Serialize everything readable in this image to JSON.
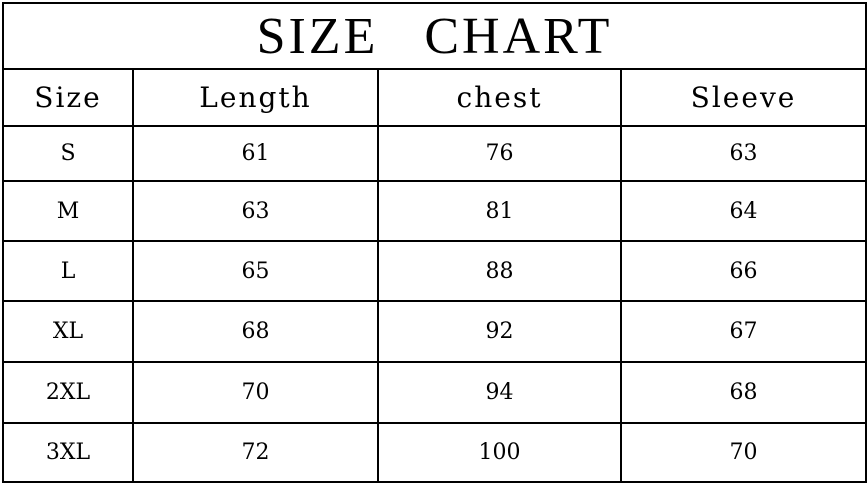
{
  "title": "SIZE CHART",
  "columns": [
    "Size",
    "Length",
    "chest",
    "Sleeve"
  ],
  "rows": [
    [
      "S",
      "61",
      "76",
      "63"
    ],
    [
      "M",
      "63",
      "81",
      "64"
    ],
    [
      "L",
      "65",
      "88",
      "66"
    ],
    [
      "XL",
      "68",
      "92",
      "67"
    ],
    [
      "2XL",
      "70",
      "94",
      "68"
    ],
    [
      "3XL",
      "72",
      "100",
      "70"
    ]
  ]
}
